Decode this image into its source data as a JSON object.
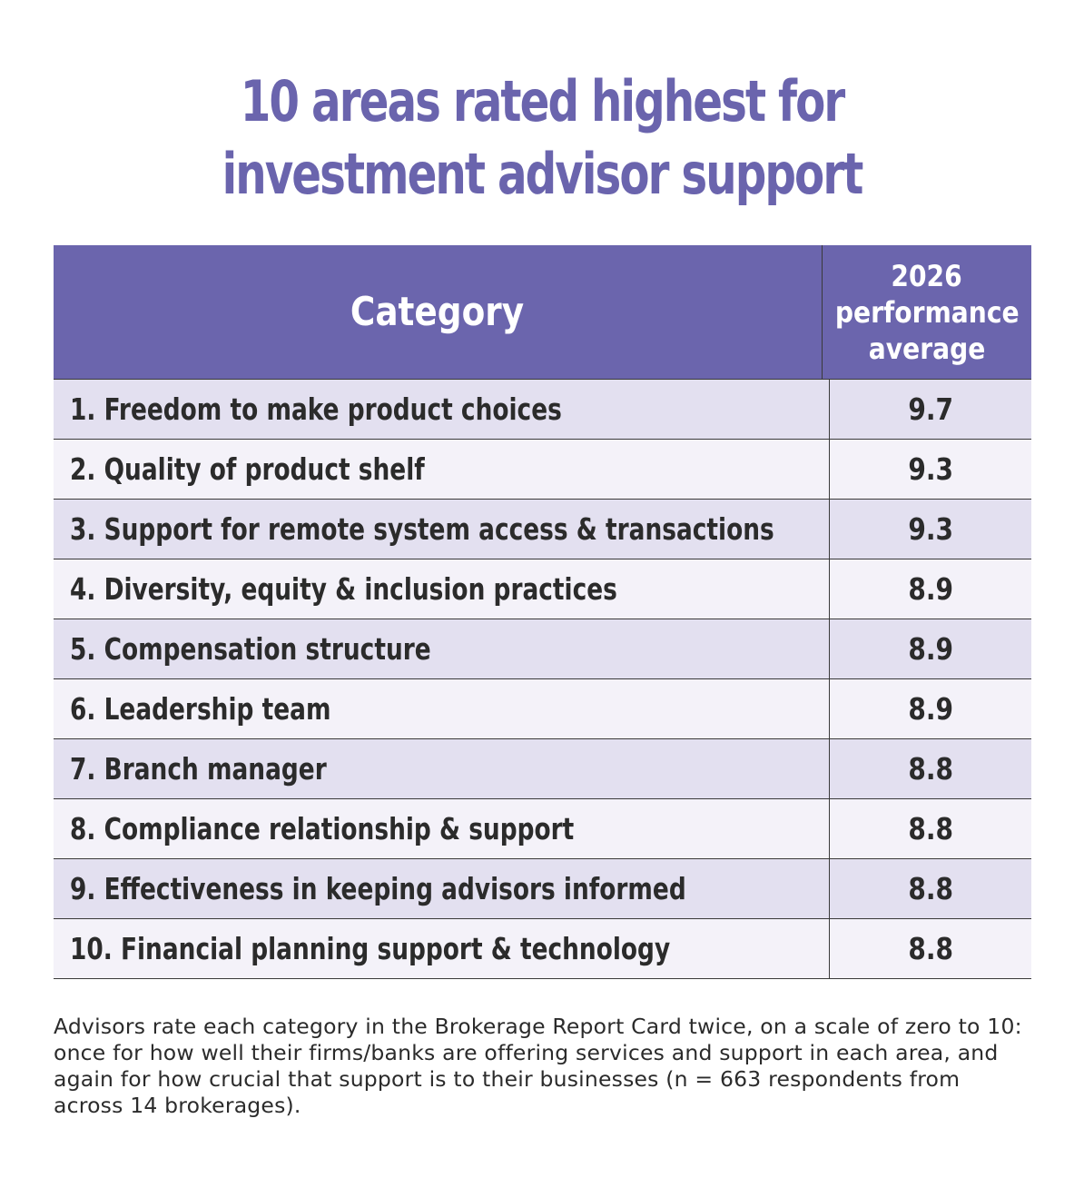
{
  "title_lines": [
    "10 areas rated highest for",
    "investment advisor support"
  ],
  "header": {
    "category": "Category",
    "value_lines": [
      "2026",
      "performance",
      "average"
    ]
  },
  "chart_data": {
    "type": "table",
    "title": "10 areas rated highest for investment advisor support",
    "columns": [
      "Category",
      "2026 performance average"
    ],
    "rows": [
      {
        "category": "1. Freedom to make product choices",
        "value": "9.7"
      },
      {
        "category": "2. Quality of product shelf",
        "value": "9.3"
      },
      {
        "category": "3. Support for remote system access & transactions",
        "value": "9.3"
      },
      {
        "category": "4. Diversity, equity & inclusion practices",
        "value": "8.9"
      },
      {
        "category": "5. Compensation structure",
        "value": "8.9"
      },
      {
        "category": "6. Leadership team",
        "value": "8.9"
      },
      {
        "category": "7. Branch manager",
        "value": "8.8"
      },
      {
        "category": "8. Compliance relationship & support",
        "value": "8.8"
      },
      {
        "category": "9. Effectiveness in keeping advisors informed",
        "value": "8.8"
      },
      {
        "category": "10. Financial planning support & technology",
        "value": "8.8"
      }
    ]
  },
  "footnote": "Advisors rate each category in the Brokerage Report Card twice, on a scale of zero to 10: once for how well their firms/banks are offering services and support in each area, and again for how crucial that support is to their businesses (n = 663 respondents from across 14 brokerages).",
  "colors": {
    "title": "#6a64ad",
    "header_bg": "#6b65ad",
    "row_odd": "#e3e0f0",
    "row_even": "#f4f2f9"
  }
}
